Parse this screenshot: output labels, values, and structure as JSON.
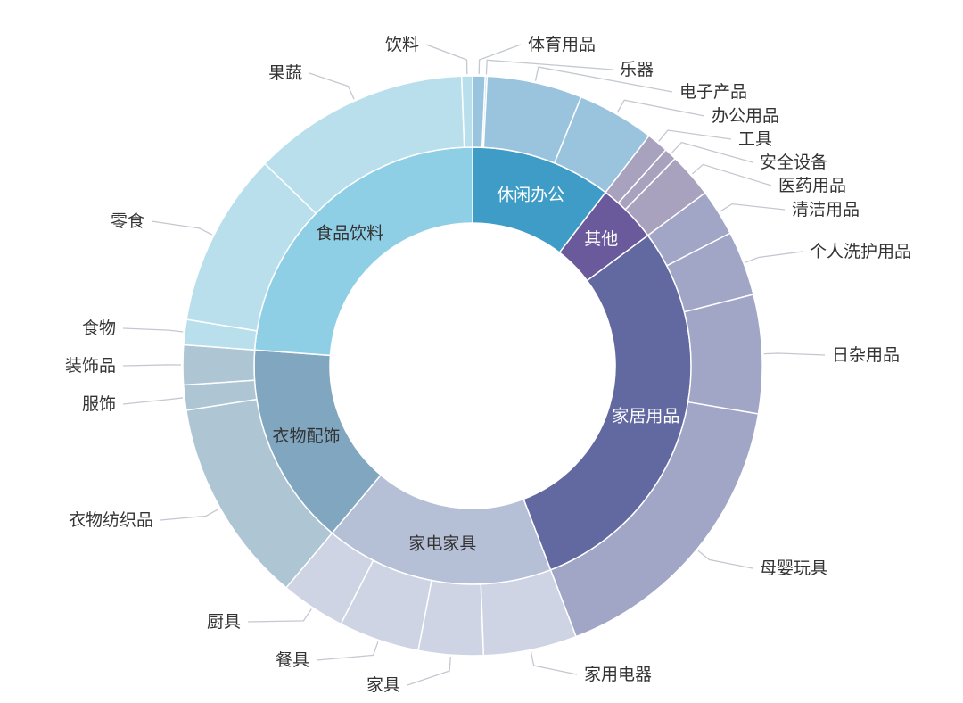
{
  "chart_data": {
    "type": "sunburst",
    "unit_note": "",
    "series": [
      {
        "name": "休闲办公",
        "color": "#3e9cc6",
        "text_color": "#ffffff",
        "outer_color": "#9ac4dd",
        "children": [
          {
            "name": "体育用品",
            "value": 0.7
          },
          {
            "name": "乐器",
            "value": 0.1
          },
          {
            "name": "电子产品",
            "value": 5.3
          },
          {
            "name": "办公用品",
            "value": 4.3
          }
        ]
      },
      {
        "name": "其他",
        "color": "#6b5a9b",
        "text_color": "#ffffff",
        "outer_color": "#a9a2be",
        "children": [
          {
            "name": "工具",
            "value": 1.2
          },
          {
            "name": "安全设备",
            "value": 0.7
          },
          {
            "name": "医药用品",
            "value": 2.5
          }
        ]
      },
      {
        "name": "家居用品",
        "color": "#6269a1",
        "text_color": "#ffffff",
        "outer_color": "#a2a6c6",
        "children": [
          {
            "name": "清洁用品",
            "value": 2.6
          },
          {
            "name": "个人洗护用品",
            "value": 3.6
          },
          {
            "name": "日杂用品",
            "value": 6.6
          },
          {
            "name": "母婴玩具",
            "value": 16.5
          }
        ]
      },
      {
        "name": "家电家具",
        "color": "#b5bfd5",
        "text_color": "#333333",
        "outer_color": "#ced4e4",
        "children": [
          {
            "name": "家用电器",
            "value": 5.2
          },
          {
            "name": "家具",
            "value": 3.6
          },
          {
            "name": "餐具",
            "value": 4.5
          },
          {
            "name": "厨具",
            "value": 3.6
          }
        ]
      },
      {
        "name": "衣物配饰",
        "color": "#80a6c0",
        "text_color": "#333333",
        "outer_color": "#aec5d4",
        "children": [
          {
            "name": "衣物纺织品",
            "value": 11.4
          },
          {
            "name": "服饰",
            "value": 1.4
          },
          {
            "name": "装饰品",
            "value": 2.2
          }
        ]
      },
      {
        "name": "食品饮料",
        "color": "#8fcfe6",
        "text_color": "#333333",
        "outer_color": "#b9dfed",
        "children": [
          {
            "name": "食物",
            "value": 1.4
          },
          {
            "name": "零食",
            "value": 9.7
          },
          {
            "name": "果蔬",
            "value": 12.1
          },
          {
            "name": "饮料",
            "value": 0.6
          }
        ]
      }
    ],
    "start_angle": "top, clockwise",
    "legend": "none",
    "grid": false
  }
}
